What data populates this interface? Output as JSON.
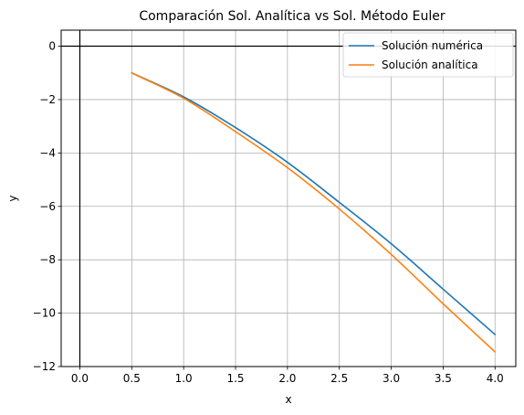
{
  "chart_data": {
    "type": "line",
    "title": "Comparación Sol. Analítica vs Sol. Método Euler",
    "xlabel": "x",
    "ylabel": "y",
    "xlim": [
      -0.18,
      4.2
    ],
    "ylim": [
      -12.0,
      0.6
    ],
    "xticks": [
      0.0,
      0.5,
      1.0,
      1.5,
      2.0,
      2.5,
      3.0,
      3.5,
      4.0
    ],
    "xtick_labels": [
      "0.0",
      "0.5",
      "1.0",
      "1.5",
      "2.0",
      "2.5",
      "3.0",
      "3.5",
      "4.0"
    ],
    "yticks": [
      0,
      -2,
      -4,
      -6,
      -8,
      -10,
      -12
    ],
    "ytick_labels": [
      "0",
      "−2",
      "−4",
      "−6",
      "−8",
      "−10",
      "−12"
    ],
    "grid": true,
    "reference_lines": {
      "x0": true,
      "y0": true
    },
    "legend_position": "top-right",
    "series": [
      {
        "name": "Solución numérica",
        "color": "#1f77b4",
        "x": [
          0.5,
          1.0,
          1.5,
          2.0,
          2.5,
          3.0,
          3.5,
          4.0
        ],
        "y": [
          -1.0,
          -1.9,
          -3.05,
          -4.35,
          -5.85,
          -7.4,
          -9.1,
          -10.8
        ]
      },
      {
        "name": "Solución analítica",
        "color": "#ff7f0e",
        "x": [
          0.5,
          1.0,
          1.5,
          2.0,
          2.5,
          3.0,
          3.5,
          4.0
        ],
        "y": [
          -1.0,
          -1.95,
          -3.2,
          -4.55,
          -6.1,
          -7.8,
          -9.65,
          -11.45
        ]
      }
    ]
  }
}
